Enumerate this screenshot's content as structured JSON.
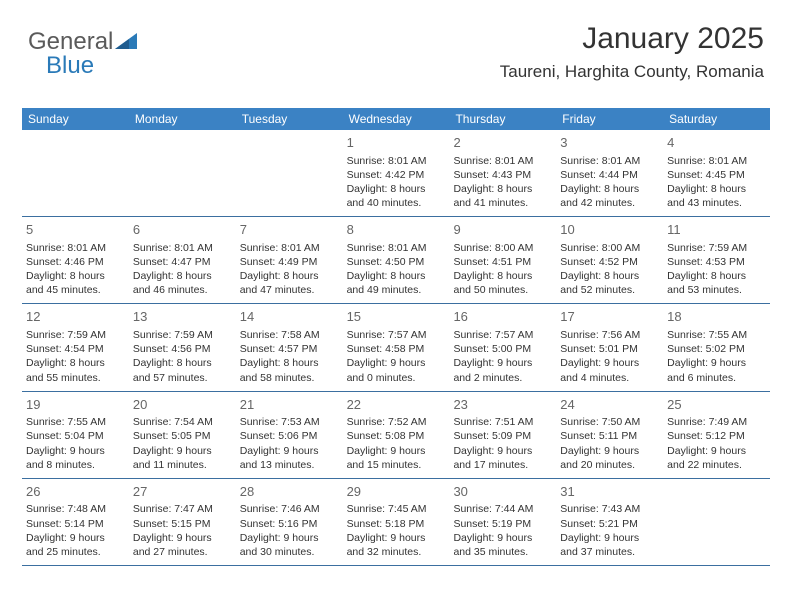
{
  "brand": {
    "part1": "General",
    "part2": "Blue"
  },
  "title": "January 2025",
  "location": "Taureni, Harghita County, Romania",
  "colors": {
    "headerBar": "#3b82c4",
    "rowDivider": "#3b6fa0",
    "text": "#333333",
    "dayNum": "#666666",
    "brandGray": "#5a5a5a",
    "brandBlue": "#2a7ab8",
    "bg": "#ffffff"
  },
  "calendar": {
    "type": "table",
    "dayNames": [
      "Sunday",
      "Monday",
      "Tuesday",
      "Wednesday",
      "Thursday",
      "Friday",
      "Saturday"
    ],
    "weeks": [
      [
        null,
        null,
        null,
        {
          "n": "1",
          "sr": "8:01 AM",
          "ss": "4:42 PM",
          "d1": "8 hours",
          "d2": "and 40 minutes."
        },
        {
          "n": "2",
          "sr": "8:01 AM",
          "ss": "4:43 PM",
          "d1": "8 hours",
          "d2": "and 41 minutes."
        },
        {
          "n": "3",
          "sr": "8:01 AM",
          "ss": "4:44 PM",
          "d1": "8 hours",
          "d2": "and 42 minutes."
        },
        {
          "n": "4",
          "sr": "8:01 AM",
          "ss": "4:45 PM",
          "d1": "8 hours",
          "d2": "and 43 minutes."
        }
      ],
      [
        {
          "n": "5",
          "sr": "8:01 AM",
          "ss": "4:46 PM",
          "d1": "8 hours",
          "d2": "and 45 minutes."
        },
        {
          "n": "6",
          "sr": "8:01 AM",
          "ss": "4:47 PM",
          "d1": "8 hours",
          "d2": "and 46 minutes."
        },
        {
          "n": "7",
          "sr": "8:01 AM",
          "ss": "4:49 PM",
          "d1": "8 hours",
          "d2": "and 47 minutes."
        },
        {
          "n": "8",
          "sr": "8:01 AM",
          "ss": "4:50 PM",
          "d1": "8 hours",
          "d2": "and 49 minutes."
        },
        {
          "n": "9",
          "sr": "8:00 AM",
          "ss": "4:51 PM",
          "d1": "8 hours",
          "d2": "and 50 minutes."
        },
        {
          "n": "10",
          "sr": "8:00 AM",
          "ss": "4:52 PM",
          "d1": "8 hours",
          "d2": "and 52 minutes."
        },
        {
          "n": "11",
          "sr": "7:59 AM",
          "ss": "4:53 PM",
          "d1": "8 hours",
          "d2": "and 53 minutes."
        }
      ],
      [
        {
          "n": "12",
          "sr": "7:59 AM",
          "ss": "4:54 PM",
          "d1": "8 hours",
          "d2": "and 55 minutes."
        },
        {
          "n": "13",
          "sr": "7:59 AM",
          "ss": "4:56 PM",
          "d1": "8 hours",
          "d2": "and 57 minutes."
        },
        {
          "n": "14",
          "sr": "7:58 AM",
          "ss": "4:57 PM",
          "d1": "8 hours",
          "d2": "and 58 minutes."
        },
        {
          "n": "15",
          "sr": "7:57 AM",
          "ss": "4:58 PM",
          "d1": "9 hours",
          "d2": "and 0 minutes."
        },
        {
          "n": "16",
          "sr": "7:57 AM",
          "ss": "5:00 PM",
          "d1": "9 hours",
          "d2": "and 2 minutes."
        },
        {
          "n": "17",
          "sr": "7:56 AM",
          "ss": "5:01 PM",
          "d1": "9 hours",
          "d2": "and 4 minutes."
        },
        {
          "n": "18",
          "sr": "7:55 AM",
          "ss": "5:02 PM",
          "d1": "9 hours",
          "d2": "and 6 minutes."
        }
      ],
      [
        {
          "n": "19",
          "sr": "7:55 AM",
          "ss": "5:04 PM",
          "d1": "9 hours",
          "d2": "and 8 minutes."
        },
        {
          "n": "20",
          "sr": "7:54 AM",
          "ss": "5:05 PM",
          "d1": "9 hours",
          "d2": "and 11 minutes."
        },
        {
          "n": "21",
          "sr": "7:53 AM",
          "ss": "5:06 PM",
          "d1": "9 hours",
          "d2": "and 13 minutes."
        },
        {
          "n": "22",
          "sr": "7:52 AM",
          "ss": "5:08 PM",
          "d1": "9 hours",
          "d2": "and 15 minutes."
        },
        {
          "n": "23",
          "sr": "7:51 AM",
          "ss": "5:09 PM",
          "d1": "9 hours",
          "d2": "and 17 minutes."
        },
        {
          "n": "24",
          "sr": "7:50 AM",
          "ss": "5:11 PM",
          "d1": "9 hours",
          "d2": "and 20 minutes."
        },
        {
          "n": "25",
          "sr": "7:49 AM",
          "ss": "5:12 PM",
          "d1": "9 hours",
          "d2": "and 22 minutes."
        }
      ],
      [
        {
          "n": "26",
          "sr": "7:48 AM",
          "ss": "5:14 PM",
          "d1": "9 hours",
          "d2": "and 25 minutes."
        },
        {
          "n": "27",
          "sr": "7:47 AM",
          "ss": "5:15 PM",
          "d1": "9 hours",
          "d2": "and 27 minutes."
        },
        {
          "n": "28",
          "sr": "7:46 AM",
          "ss": "5:16 PM",
          "d1": "9 hours",
          "d2": "and 30 minutes."
        },
        {
          "n": "29",
          "sr": "7:45 AM",
          "ss": "5:18 PM",
          "d1": "9 hours",
          "d2": "and 32 minutes."
        },
        {
          "n": "30",
          "sr": "7:44 AM",
          "ss": "5:19 PM",
          "d1": "9 hours",
          "d2": "and 35 minutes."
        },
        {
          "n": "31",
          "sr": "7:43 AM",
          "ss": "5:21 PM",
          "d1": "9 hours",
          "d2": "and 37 minutes."
        },
        null
      ]
    ],
    "labels": {
      "sunrise": "Sunrise:",
      "sunset": "Sunset:",
      "daylight": "Daylight:"
    },
    "style": {
      "cellFont": 10.5,
      "dayNumFont": 13,
      "headerFont": 12,
      "titleFont": 30,
      "locationFont": 17,
      "cellMinHeight": 78,
      "tableWidth": 748
    }
  }
}
